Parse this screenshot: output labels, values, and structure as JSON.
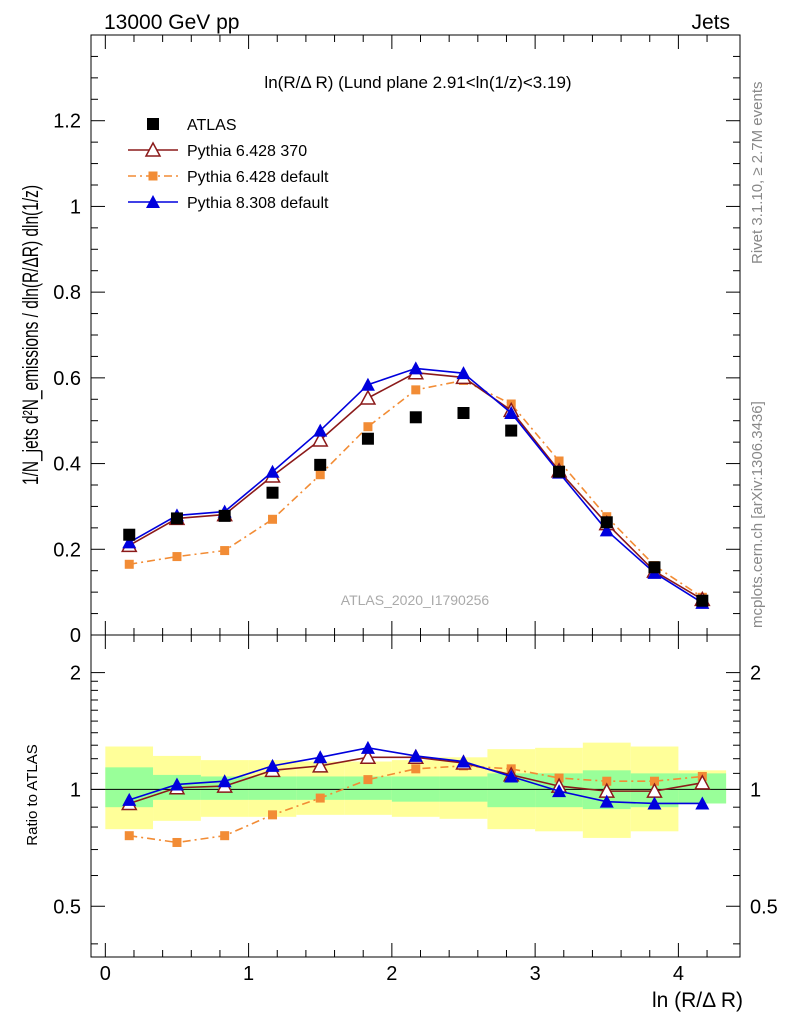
{
  "header": {
    "energy_label": "13000 GeV pp",
    "process_label": "Jets",
    "rivet_label": "Rivet 3.1.10, ≥ 2.7M events",
    "source_label": "mcplots.cern.ch [arXiv:1306.3436]",
    "analysis_label": "ATLAS_2020_I1790256",
    "panel_title": "ln(R/Δ R) (Lund plane 2.91<ln(1/z)<3.19)"
  },
  "axes": {
    "main_ylabel": "1/N_jets d²N_emissions / dln(R/ΔR) dln(1/z)",
    "ratio_ylabel": "Ratio to ATLAS",
    "xlabel": "ln (R/Δ R)"
  },
  "legend": [
    {
      "label": "ATLAS",
      "color": "#000000",
      "marker": "square",
      "line": "none"
    },
    {
      "label": "Pythia 6.428 370",
      "color": "#8b1a1a",
      "marker": "open-triangle",
      "line": "solid"
    },
    {
      "label": "Pythia 6.428 default",
      "color": "#f28c35",
      "marker": "square-small",
      "line": "dashdot"
    },
    {
      "label": "Pythia 8.308 default",
      "color": "#0000dd",
      "marker": "triangle",
      "line": "solid"
    }
  ],
  "chart_data": [
    {
      "type": "line",
      "title": "ln(R/Δ R) (Lund plane 2.91<ln(1/z)<3.19)",
      "xlim": [
        -0.1,
        4.43
      ],
      "ylim": [
        0,
        1.4
      ],
      "y_ticks": [
        "0",
        "0.2",
        "0.4",
        "0.6",
        "0.8",
        "1",
        "1.2"
      ],
      "y_tick_values": [
        0,
        0.2,
        0.4,
        0.6,
        0.8,
        1.0,
        1.2
      ],
      "x": [
        0.167,
        0.5,
        0.833,
        1.167,
        1.5,
        1.833,
        2.167,
        2.5,
        2.833,
        3.167,
        3.5,
        3.833,
        4.167
      ],
      "series": [
        {
          "name": "ATLAS",
          "values": [
            0.234,
            0.272,
            0.278,
            0.332,
            0.397,
            0.458,
            0.508,
            0.518,
            0.477,
            0.381,
            0.263,
            0.158,
            0.08
          ]
        },
        {
          "name": "Pythia 6.428 370",
          "values": [
            0.209,
            0.272,
            0.281,
            0.371,
            0.455,
            0.553,
            0.612,
            0.601,
            0.524,
            0.383,
            0.26,
            0.149,
            0.083
          ]
        },
        {
          "name": "Pythia 6.428 default",
          "values": [
            0.165,
            0.183,
            0.197,
            0.27,
            0.374,
            0.486,
            0.572,
            0.594,
            0.539,
            0.406,
            0.276,
            0.162,
            0.088
          ]
        },
        {
          "name": "Pythia 8.308 default",
          "values": [
            0.216,
            0.279,
            0.288,
            0.381,
            0.477,
            0.584,
            0.622,
            0.611,
            0.518,
            0.379,
            0.244,
            0.145,
            0.075
          ]
        }
      ]
    },
    {
      "type": "line",
      "ylabel": "Ratio to ATLAS",
      "xlabel": "ln (R/Δ R)",
      "xlim": [
        -0.1,
        4.43
      ],
      "ylim": [
        0.37,
        2.5
      ],
      "y_scale": "log",
      "y_ticks": [
        "0.5",
        "1",
        "2"
      ],
      "y_tick_values": [
        0.5,
        1,
        2
      ],
      "x_ticks": [
        "0",
        "1",
        "2",
        "3",
        "4"
      ],
      "x_tick_values": [
        0,
        1,
        2,
        3,
        4
      ],
      "x": [
        0.167,
        0.5,
        0.833,
        1.167,
        1.5,
        1.833,
        2.167,
        2.5,
        2.833,
        3.167,
        3.5,
        3.833,
        4.167
      ],
      "bin_edges": [
        0.0,
        0.333,
        0.667,
        1.0,
        1.333,
        1.667,
        2.0,
        2.333,
        2.667,
        3.0,
        3.333,
        3.667,
        4.0,
        4.333
      ],
      "bands": {
        "stat_green": [
          [
            0.9,
            1.14
          ],
          [
            0.94,
            1.09
          ],
          [
            0.94,
            1.08
          ],
          [
            0.94,
            1.08
          ],
          [
            0.94,
            1.08
          ],
          [
            0.94,
            1.08
          ],
          [
            0.93,
            1.08
          ],
          [
            0.93,
            1.08
          ],
          [
            0.9,
            1.1
          ],
          [
            0.9,
            1.1
          ],
          [
            0.89,
            1.12
          ],
          [
            0.9,
            1.1
          ],
          [
            0.92,
            1.1
          ]
        ],
        "total_yellow": [
          [
            0.79,
            1.29
          ],
          [
            0.83,
            1.22
          ],
          [
            0.85,
            1.19
          ],
          [
            0.85,
            1.19
          ],
          [
            0.86,
            1.18
          ],
          [
            0.86,
            1.18
          ],
          [
            0.85,
            1.19
          ],
          [
            0.84,
            1.21
          ],
          [
            0.79,
            1.27
          ],
          [
            0.78,
            1.28
          ],
          [
            0.75,
            1.32
          ],
          [
            0.78,
            1.29
          ],
          [
            0.92,
            1.12
          ]
        ]
      },
      "series": [
        {
          "name": "Pythia 6.428 370",
          "values": [
            0.92,
            1.01,
            1.02,
            1.12,
            1.15,
            1.21,
            1.21,
            1.17,
            1.09,
            1.02,
            0.99,
            0.99,
            1.04
          ]
        },
        {
          "name": "Pythia 6.428 default",
          "values": [
            0.76,
            0.73,
            0.76,
            0.86,
            0.95,
            1.06,
            1.13,
            1.15,
            1.13,
            1.07,
            1.05,
            1.05,
            1.08
          ]
        },
        {
          "name": "Pythia 8.308 default",
          "values": [
            0.94,
            1.03,
            1.05,
            1.15,
            1.21,
            1.28,
            1.22,
            1.18,
            1.08,
            0.99,
            0.93,
            0.92,
            0.92
          ]
        }
      ]
    }
  ]
}
